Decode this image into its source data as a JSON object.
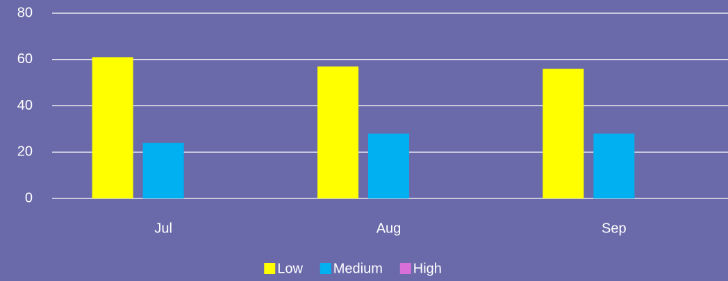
{
  "chart_data": {
    "type": "bar",
    "categories": [
      "Jul",
      "Aug",
      "Sep"
    ],
    "series": [
      {
        "name": "Low",
        "color": "#ffff00",
        "values": [
          61,
          57,
          56
        ]
      },
      {
        "name": "Medium",
        "color": "#00b0f0",
        "values": [
          24,
          28,
          28
        ]
      },
      {
        "name": "High",
        "color": "#d86ed8",
        "values": [
          0,
          0,
          0
        ]
      }
    ],
    "ylim": [
      0,
      80
    ],
    "yticks": [
      0,
      20,
      40,
      60,
      80
    ],
    "grid": true,
    "legend": "bottom"
  }
}
